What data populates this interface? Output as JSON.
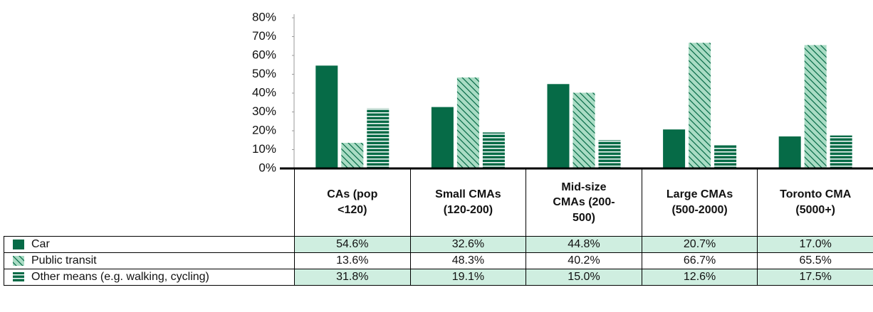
{
  "chart_data": {
    "type": "bar",
    "categories": [
      "CAs (pop <120)",
      "Small CMAs (120-200)",
      "Mid-size CMAs (200-500)",
      "Large CMAs (500-2000)",
      "Toronto CMA (5000+)"
    ],
    "series": [
      {
        "name": "Car",
        "color": "#066b47",
        "values": [
          54.6,
          32.6,
          44.8,
          20.7,
          17.0
        ],
        "value_labels": [
          "54.6%",
          "32.6%",
          "44.8%",
          "20.7%",
          "17.0%"
        ]
      },
      {
        "name": "Public transit",
        "color": "#a9dcc4",
        "values": [
          13.6,
          48.3,
          40.2,
          66.7,
          65.5
        ],
        "value_labels": [
          "13.6%",
          "48.3%",
          "40.2%",
          "66.7%",
          "65.5%"
        ]
      },
      {
        "name": "Other means (e.g. walking, cycling)",
        "color": "#066b47",
        "values": [
          31.8,
          19.1,
          15.0,
          12.6,
          17.5
        ],
        "value_labels": [
          "31.8%",
          "19.1%",
          "15.0%",
          "12.6%",
          "17.5%"
        ]
      }
    ],
    "ylim": [
      0,
      80
    ],
    "yticks": [
      {
        "value": 0,
        "label": "0%"
      },
      {
        "value": 10,
        "label": "10%"
      },
      {
        "value": 20,
        "label": "20%"
      },
      {
        "value": 30,
        "label": "30%"
      },
      {
        "value": 40,
        "label": "40%"
      },
      {
        "value": 50,
        "label": "50%"
      },
      {
        "value": 60,
        "label": "60%"
      },
      {
        "value": 70,
        "label": "70%"
      },
      {
        "value": 80,
        "label": "80%"
      }
    ]
  }
}
